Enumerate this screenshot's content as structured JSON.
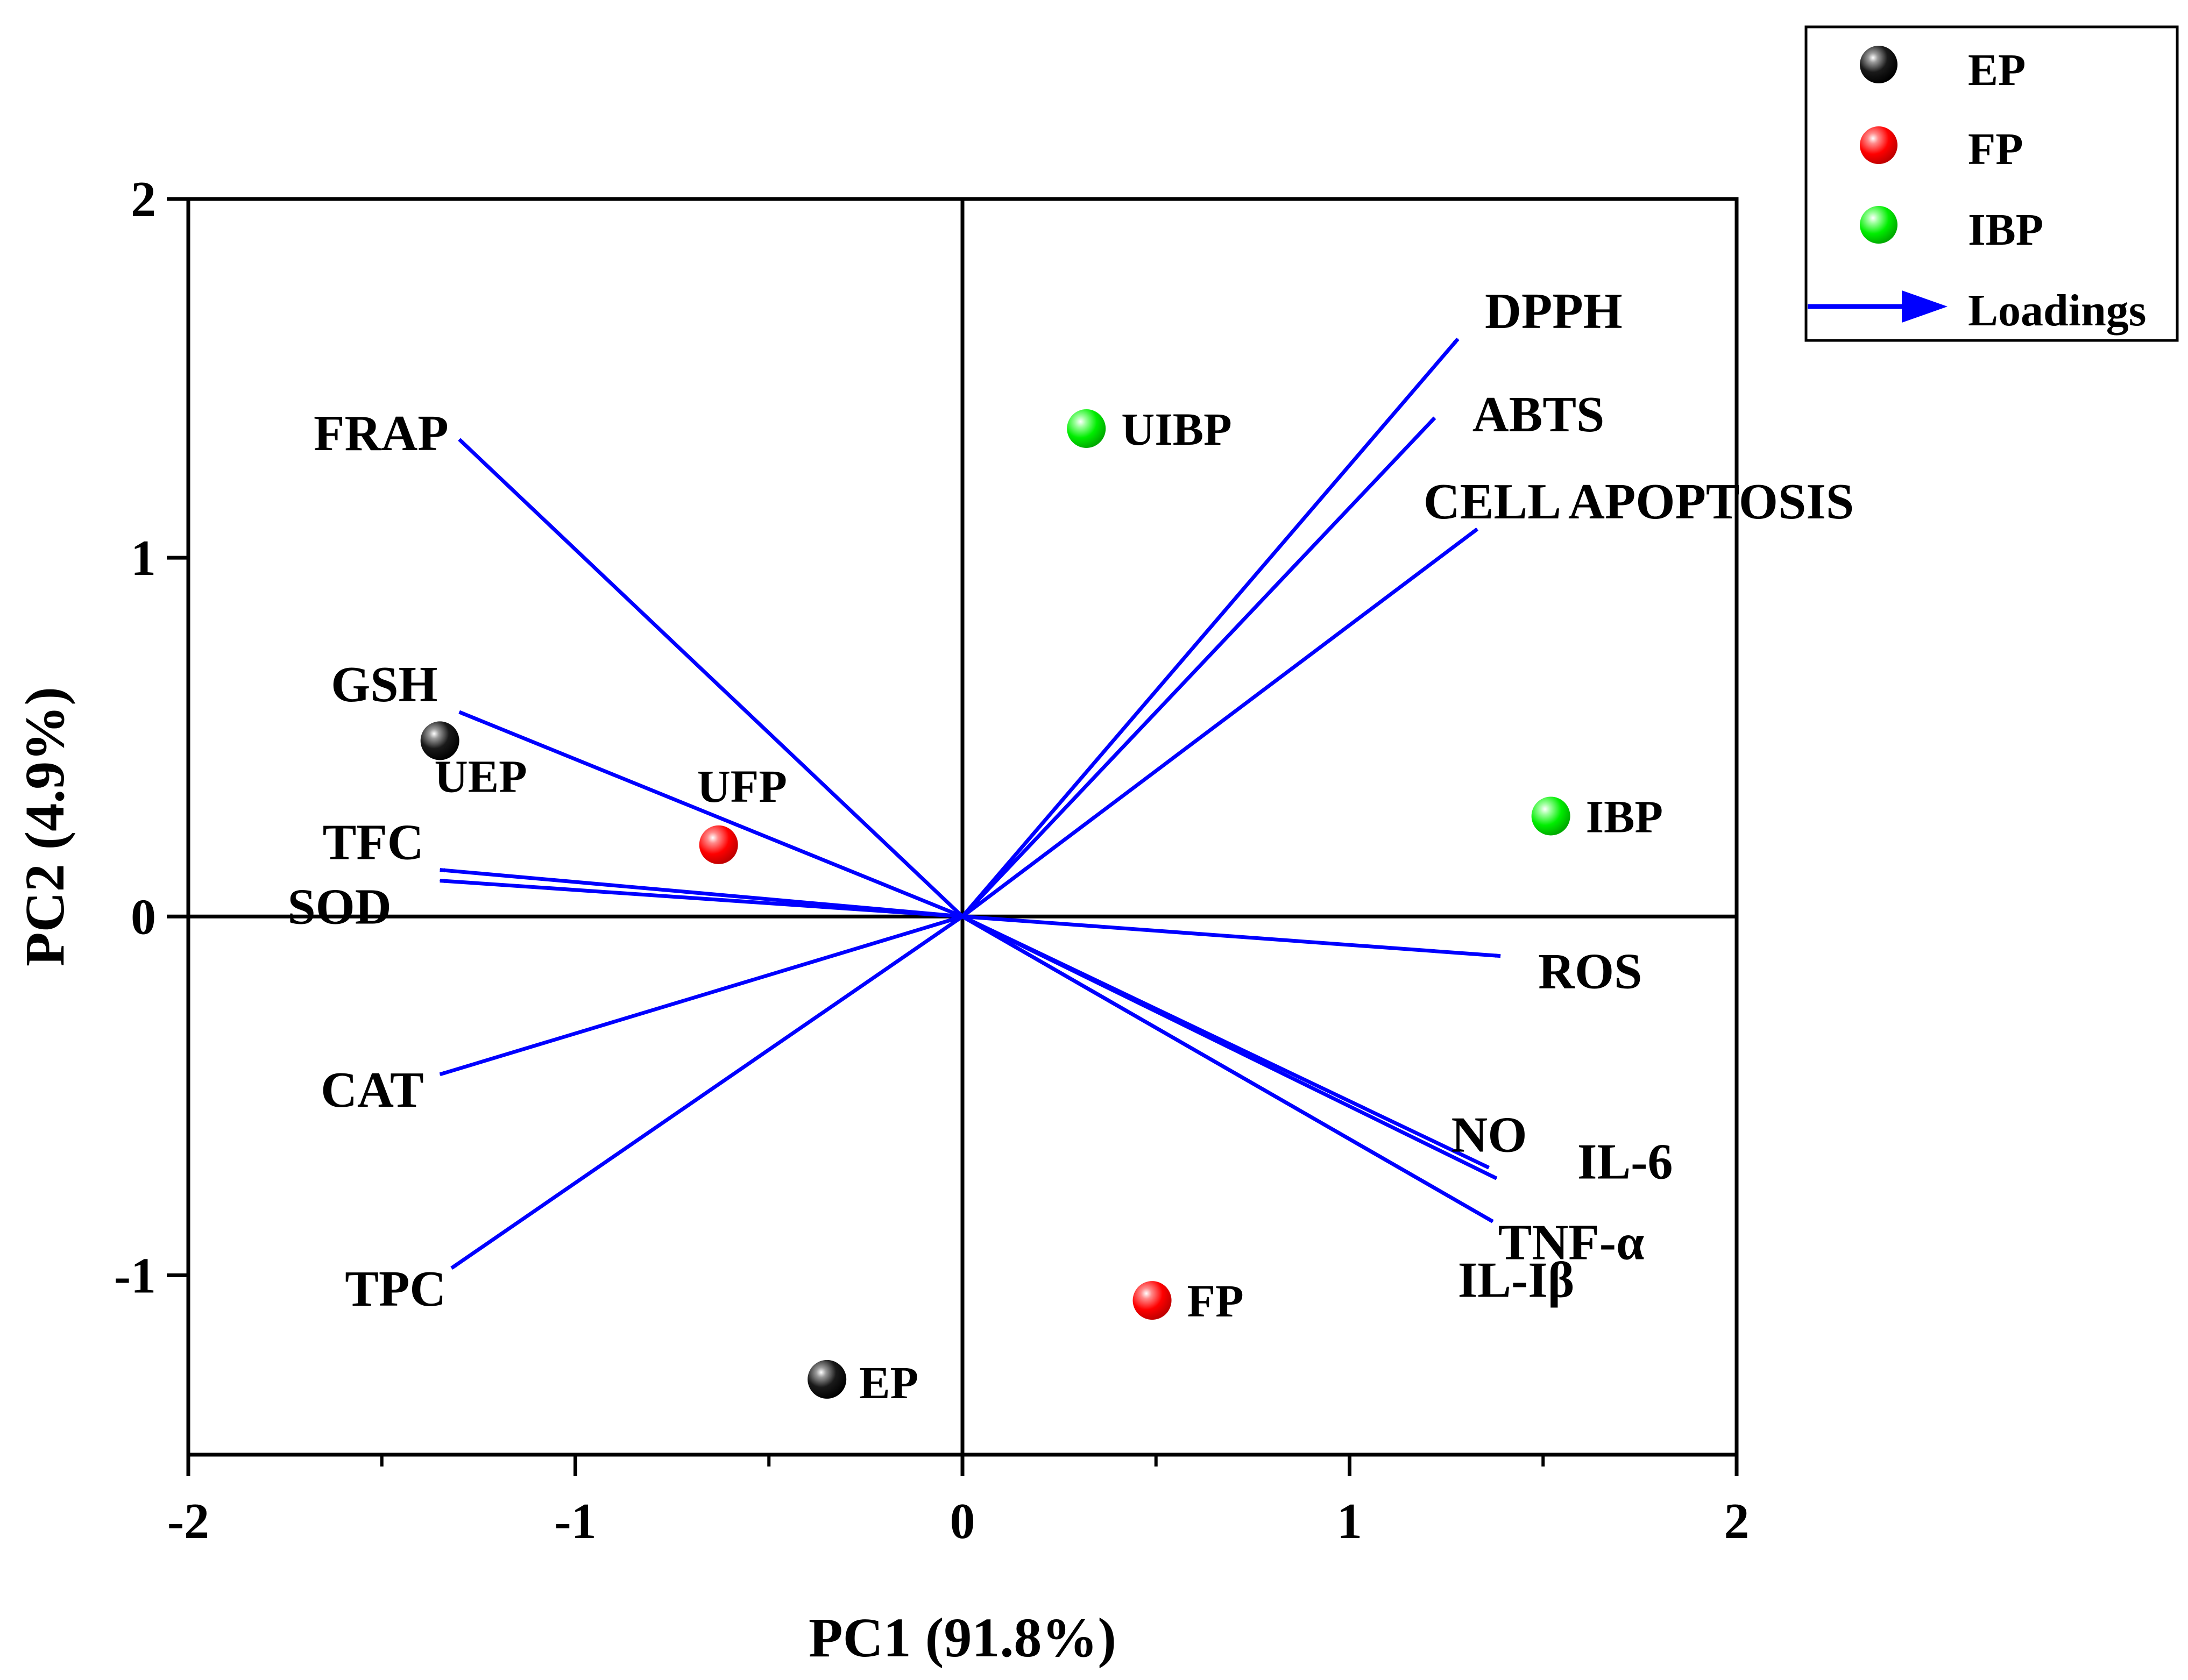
{
  "chart_data": {
    "type": "scatter",
    "subtype": "pca-biplot",
    "xlabel": "PC1 (91.8%)",
    "ylabel": "PC2 (4.9%)",
    "xlim": [
      -2,
      2
    ],
    "ylim": [
      -1.5,
      2
    ],
    "x_ticks": [
      -2,
      -1,
      0,
      1,
      2
    ],
    "y_ticks": [
      -1,
      0,
      1,
      2
    ],
    "x_tick_labels": [
      "-2",
      "-1",
      "0",
      "1",
      "2"
    ],
    "y_tick_labels": [
      "-1",
      "0",
      "1",
      "2"
    ],
    "reference_lines": {
      "x": 0,
      "y": 0
    },
    "legend_position": "top-right, outside plot",
    "legend": [
      {
        "label": "EP",
        "kind": "point",
        "color": "#000000"
      },
      {
        "label": "FP",
        "kind": "point",
        "color": "#ff0000"
      },
      {
        "label": "IBP",
        "kind": "point",
        "color": "#00ee00"
      },
      {
        "label": "Loadings",
        "kind": "arrow",
        "color": "#0000ff"
      }
    ],
    "scores": [
      {
        "label": "UEP",
        "group": "EP",
        "x": -1.35,
        "y": 0.49
      },
      {
        "label": "EP",
        "group": "EP",
        "x": -0.35,
        "y": -1.29
      },
      {
        "label": "UFP",
        "group": "FP",
        "x": -0.63,
        "y": 0.2
      },
      {
        "label": "FP",
        "group": "FP",
        "x": 0.49,
        "y": -1.07
      },
      {
        "label": "UIBP",
        "group": "IBP",
        "x": 0.32,
        "y": 1.36
      },
      {
        "label": "IBP",
        "group": "IBP",
        "x": 1.52,
        "y": 0.28
      }
    ],
    "loadings": [
      {
        "label": "DPPH",
        "x": 1.28,
        "y": 1.61
      },
      {
        "label": "ABTS",
        "x": 1.22,
        "y": 1.39
      },
      {
        "label": "CELL APOPTOSIS",
        "x": 1.33,
        "y": 1.08
      },
      {
        "label": "ROS",
        "x": 1.39,
        "y": -0.11
      },
      {
        "label": "NO",
        "x": 1.36,
        "y": -0.7
      },
      {
        "label": "IL-6",
        "x": 1.38,
        "y": -0.73
      },
      {
        "label": "TNF-α",
        "x": 1.37,
        "y": -0.85
      },
      {
        "label": "IL-Iβ",
        "x": 1.37,
        "y": -0.85
      },
      {
        "label": "FRAP",
        "x": -1.3,
        "y": 1.33
      },
      {
        "label": "GSH",
        "x": -1.3,
        "y": 0.57
      },
      {
        "label": "TFC",
        "x": -1.35,
        "y": 0.13
      },
      {
        "label": "SOD",
        "x": -1.35,
        "y": 0.1
      },
      {
        "label": "CAT",
        "x": -1.35,
        "y": -0.44
      },
      {
        "label": "TPC",
        "x": -1.32,
        "y": -0.98
      }
    ]
  }
}
